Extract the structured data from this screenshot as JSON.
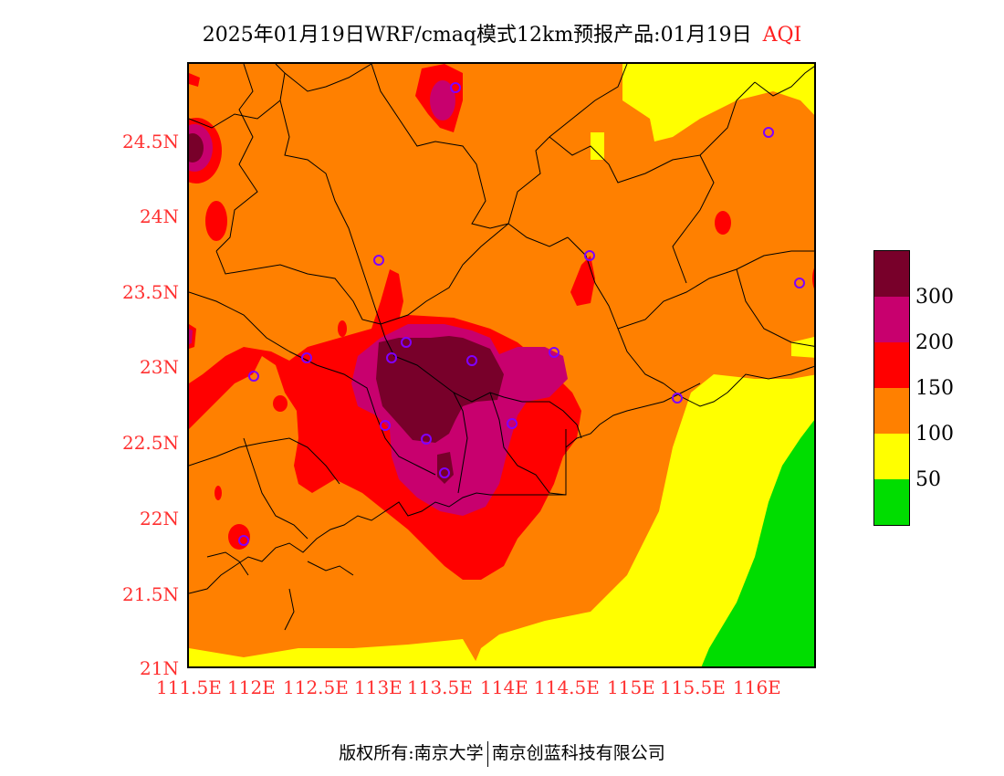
{
  "title": {
    "text": "2025年01月19日WRF/cmaq模式12km预报产品:01月19日",
    "product": "AQI"
  },
  "axes": {
    "y_labels": [
      "24.5N",
      "24N",
      "23.5N",
      "23N",
      "22.5N",
      "22N",
      "21.5N",
      "21N"
    ],
    "x_labels": [
      "111.5E",
      "112E",
      "112.5E",
      "113E",
      "113.5E",
      "114E",
      "114.5E",
      "115E",
      "115.5E",
      "116E"
    ]
  },
  "legend": {
    "levels": [
      {
        "label": "300",
        "color": "#78002a"
      },
      {
        "label": "200",
        "color": "#c8006e"
      },
      {
        "label": "150",
        "color": "#ff0000"
      },
      {
        "label": "100",
        "color": "#ff8000"
      },
      {
        "label": "50",
        "color": "#ffff00"
      },
      {
        "label": "",
        "color": "#00dd00"
      }
    ],
    "tick_labels": [
      "300",
      "200",
      "150",
      "100",
      "50"
    ]
  },
  "footer": {
    "left": "版权所有:南京大学",
    "right": "南京创蓝科技有限公司"
  }
}
